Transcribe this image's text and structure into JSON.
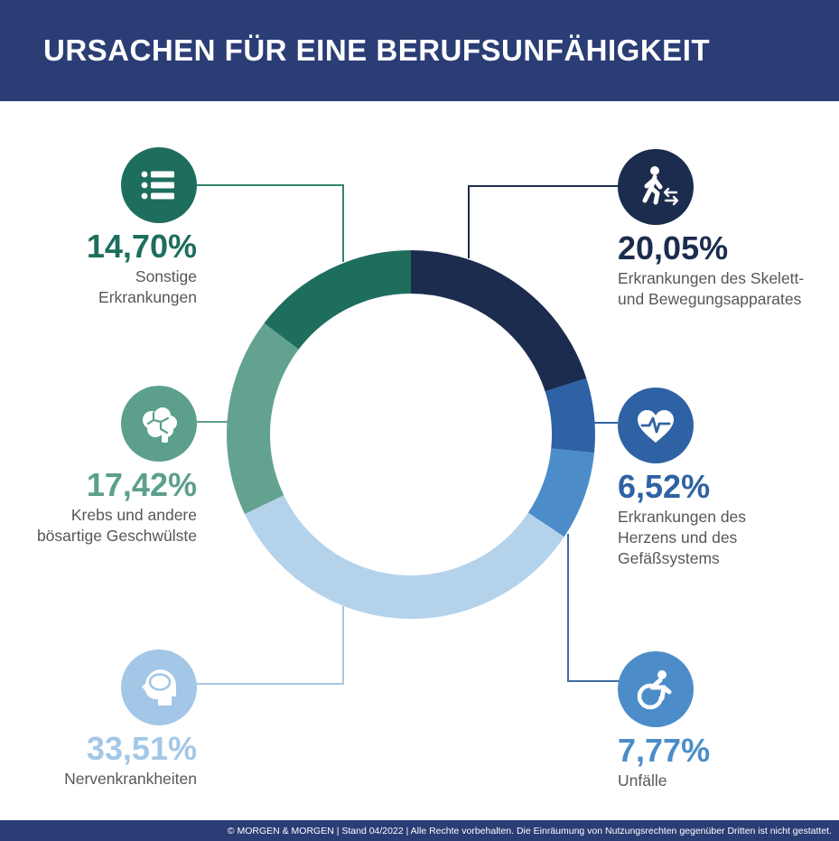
{
  "header": {
    "title": "URSACHEN FÜR EINE BERUFSUNFÄHIGKEIT",
    "bg": "#2A3D75"
  },
  "footer": {
    "text": "© MORGEN & MORGEN  | Stand 04/2022 | Alle Rechte vorbehalten. Die Einräumung von Nutzungsrechten gegenüber Dritten ist nicht gestattet.",
    "bg": "#2A3D75"
  },
  "callouts": [
    {
      "key": "sonstige",
      "icon": "list-icon",
      "pct": "14,70%",
      "label": [
        "Sonstige",
        "Erkrankungen"
      ],
      "color": "#1E6E5E",
      "line_color": "#35836F"
    },
    {
      "key": "krebs",
      "icon": "brain-icon",
      "pct": "17,42%",
      "label": [
        "Krebs und andere",
        "bösartige Geschwülste"
      ],
      "color": "#5C9F8D",
      "line_color": "#5C9F8D"
    },
    {
      "key": "nerven",
      "icon": "head-icon",
      "pct": "33,51%",
      "label": [
        "Nervenkrankheiten"
      ],
      "color": "#A3C7E6",
      "line_color": "#A9C7E2"
    },
    {
      "key": "skelett",
      "icon": "walking-icon",
      "pct": "20,05%",
      "label": [
        "Erkrankungen des Skelett-",
        "und Bewegungsapparates"
      ],
      "color": "#1B2C4E",
      "line_color": "#1B2C4E"
    },
    {
      "key": "herz",
      "icon": "heart-icon",
      "pct": "6,52%",
      "label": [
        "Erkrankungen des",
        "Herzens und des",
        "Gefäßsystems"
      ],
      "color": "#2F62A4",
      "line_color": "#2F62A4"
    },
    {
      "key": "unfaelle",
      "icon": "wheelchair-icon",
      "pct": "7,77%",
      "label": [
        "Unfälle"
      ],
      "color": "#4C8DC9",
      "line_color": "#3E6CA4"
    }
  ],
  "chart_data": {
    "type": "pie",
    "subtype": "donut",
    "title": "Ursachen für eine Berufsunfähigkeit",
    "start_angle_deg": 0,
    "direction": "clockwise",
    "legend_position": "around",
    "series": [
      {
        "key": "skelett",
        "name": "Erkrankungen des Skelett- und Bewegungsapparates",
        "value": 20.05,
        "color": "#1B2C4E"
      },
      {
        "key": "herz",
        "name": "Erkrankungen des Herzens und des Gefäßsystems",
        "value": 6.52,
        "color": "#2F62A4"
      },
      {
        "key": "unfaelle",
        "name": "Unfälle",
        "value": 7.77,
        "color": "#4C8DC9"
      },
      {
        "key": "nerven",
        "name": "Nervenkrankheiten",
        "value": 33.51,
        "color": "#B5D2EB"
      },
      {
        "key": "krebs",
        "name": "Krebs und andere bösartige Geschwülste",
        "value": 17.42,
        "color": "#63A291"
      },
      {
        "key": "sonstige",
        "name": "Sonstige Erkrankungen",
        "value": 14.7,
        "color": "#1E6E5E"
      }
    ]
  }
}
